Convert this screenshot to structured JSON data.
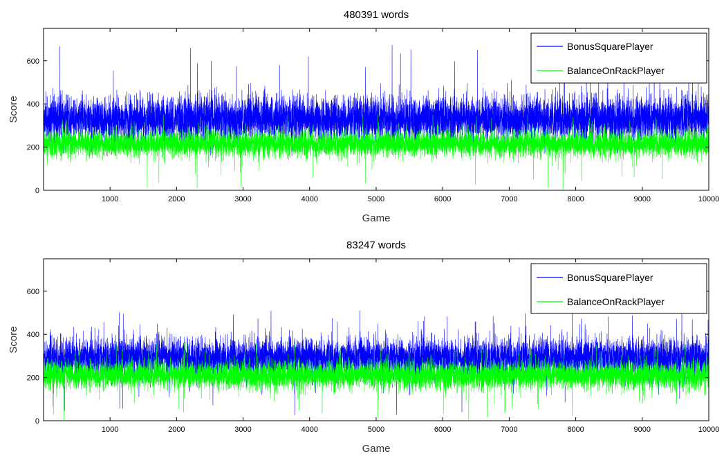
{
  "chart_data": [
    {
      "type": "line",
      "title": "480391 words",
      "xlabel": "Game",
      "ylabel": "Score",
      "xlim": [
        1,
        10000
      ],
      "ylim": [
        0,
        750
      ],
      "xticks": [
        1000,
        2000,
        3000,
        4000,
        5000,
        6000,
        7000,
        8000,
        9000,
        10000
      ],
      "yticks": [
        0,
        200,
        400,
        600
      ],
      "legend_position": "top-right",
      "series": [
        {
          "name": "BonusSquarePlayer",
          "color": "#0000ff",
          "mean": 330,
          "spread": 52,
          "min": 160,
          "max": 685,
          "length": 10000
        },
        {
          "name": "BalanceOnRackPlayer",
          "color": "#00ff00",
          "mean": 215,
          "spread": 30,
          "min": 0,
          "max": 360,
          "length": 10000
        }
      ]
    },
    {
      "type": "line",
      "title": "83247 words",
      "xlabel": "Game",
      "ylabel": "Score",
      "xlim": [
        1,
        10000
      ],
      "ylim": [
        0,
        750
      ],
      "xticks": [
        1000,
        2000,
        3000,
        4000,
        5000,
        6000,
        7000,
        8000,
        9000,
        10000
      ],
      "yticks": [
        0,
        200,
        400,
        600
      ],
      "legend_position": "top-right",
      "series": [
        {
          "name": "BonusSquarePlayer",
          "color": "#0000ff",
          "mean": 290,
          "spread": 45,
          "min": 20,
          "max": 510,
          "length": 10000
        },
        {
          "name": "BalanceOnRackPlayer",
          "color": "#00ff00",
          "mean": 210,
          "spread": 32,
          "min": 0,
          "max": 360,
          "length": 10000
        }
      ]
    }
  ]
}
